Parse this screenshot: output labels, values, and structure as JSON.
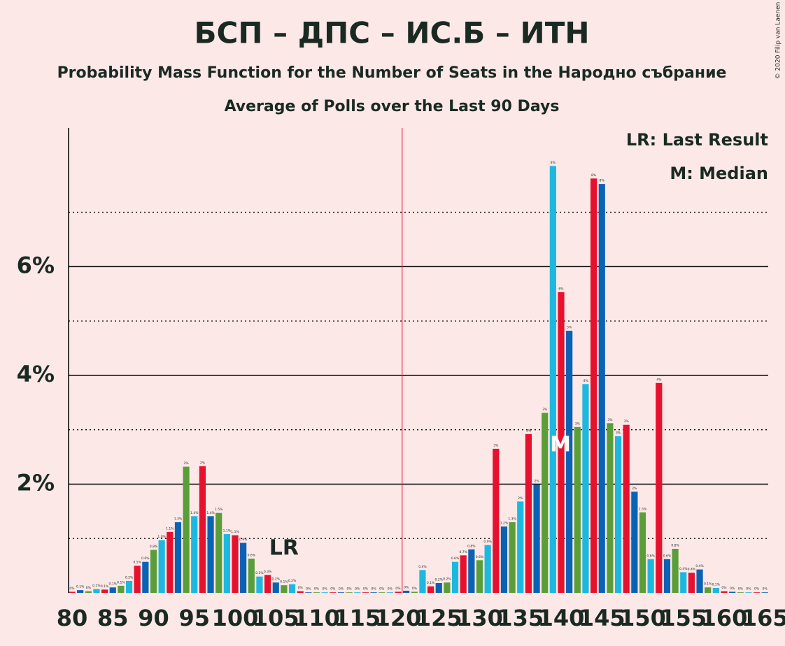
{
  "chart_data": {
    "type": "bar",
    "title": "БСП – ДПС – ИС.Б – ИТН",
    "subtitle": "Probability Mass Function for the Number of Seats in the Народно събрание",
    "subtitle2": "Average of Polls over the Last 90 Days",
    "copyright": "© 2020 Filip van Laenen",
    "legend": [
      "LR: Last Result",
      "M: Median"
    ],
    "x": [
      80,
      81,
      82,
      83,
      84,
      85,
      86,
      87,
      88,
      89,
      90,
      91,
      92,
      93,
      94,
      95,
      96,
      97,
      98,
      99,
      100,
      101,
      102,
      103,
      104,
      105,
      106,
      107,
      108,
      109,
      110,
      111,
      112,
      113,
      114,
      115,
      116,
      117,
      118,
      119,
      120,
      121,
      122,
      123,
      124,
      125,
      126,
      127,
      128,
      129,
      130,
      131,
      132,
      133,
      134,
      135,
      136,
      137,
      138,
      139,
      140,
      141,
      142,
      143,
      144,
      145,
      146,
      147,
      148,
      149,
      150,
      151,
      152,
      153,
      154,
      155,
      156,
      157,
      158,
      159,
      160,
      161,
      162,
      163,
      164,
      165
    ],
    "values": [
      0.02,
      0.05,
      0.03,
      0.07,
      0.06,
      0.1,
      0.13,
      0.22,
      0.5,
      0.57,
      0.79,
      0.97,
      1.12,
      1.3,
      2.32,
      1.41,
      2.33,
      1.41,
      1.47,
      1.08,
      1.06,
      0.92,
      0.63,
      0.3,
      0.33,
      0.19,
      0.14,
      0.16,
      0.03,
      0.01,
      0.01,
      0.01,
      0.01,
      0.01,
      0.01,
      0.01,
      0.01,
      0.01,
      0.01,
      0.01,
      0.02,
      0.04,
      0.02,
      0.42,
      0.12,
      0.18,
      0.19,
      0.57,
      0.69,
      0.8,
      0.6,
      0.88,
      2.65,
      1.22,
      1.3,
      1.68,
      2.92,
      1.99,
      3.31,
      7.85,
      5.53,
      4.82,
      3.05,
      3.84,
      7.62,
      7.52,
      3.12,
      2.88,
      3.09,
      1.86,
      1.48,
      0.62,
      3.86,
      0.62,
      0.81,
      0.38,
      0.37,
      0.43,
      0.1,
      0.09,
      0.03,
      0.02,
      0.01,
      0.01,
      0.01,
      0.01
    ],
    "value_labels": [
      "0%",
      "0.1%",
      "0%",
      "0.1%",
      "0.1%",
      "0.1%",
      "0.1%",
      "0.2%",
      "0.5%",
      "0.6%",
      "0.8%",
      "1.0%",
      "1.1%",
      "1.3%",
      "2%",
      "1.4%",
      "2%",
      "1.4%",
      "1.5%",
      "1.1%",
      "1.1%",
      "0.9%",
      "0.6%",
      "0.3%",
      "0.3%",
      "0.2%",
      "0.1%",
      "0.2%",
      "0%",
      "0%",
      "0%",
      "0%",
      "0%",
      "0%",
      "0%",
      "0%",
      "0%",
      "0%",
      "0%",
      "0%",
      "0%",
      "0%",
      "0%",
      "0.4%",
      "0.1%",
      "0.2%",
      "0.2%",
      "0.6%",
      "0.7%",
      "0.8%",
      "0.6%",
      "0.9%",
      "3%",
      "1.2%",
      "1.3%",
      "2%",
      "3%",
      "2%",
      "3%",
      "8%",
      "6%",
      "5%",
      "3%",
      "4%",
      "8%",
      "8%",
      "3%",
      "3%",
      "3%",
      "2%",
      "1.5%",
      "0.6%",
      "4%",
      "0.6%",
      "0.8%",
      "0.4%",
      "0.4%",
      "0.4%",
      "0.1%",
      "0.1%",
      "0%",
      "0%",
      "0%",
      "0%",
      "0%",
      "0%"
    ],
    "colors": [
      "#e8112d",
      "#0a62b5",
      "#5a9e3a",
      "#1cb8e0"
    ],
    "xlim": [
      79.5,
      165.5
    ],
    "xticks": [
      80,
      85,
      90,
      95,
      100,
      105,
      110,
      115,
      120,
      125,
      130,
      135,
      140,
      145,
      150,
      155,
      160,
      165
    ],
    "ylim": [
      0,
      8.55
    ],
    "yticks": [
      {
        "value": 2,
        "label": "2%"
      },
      {
        "value": 4,
        "label": "4%"
      },
      {
        "value": 6,
        "label": "6%"
      }
    ],
    "minor_yticks": [
      1,
      3,
      5,
      7
    ],
    "majority_x": 120.5,
    "last_result": {
      "x": 106,
      "label": "LR"
    },
    "median": {
      "x": 140,
      "label": "M"
    }
  }
}
